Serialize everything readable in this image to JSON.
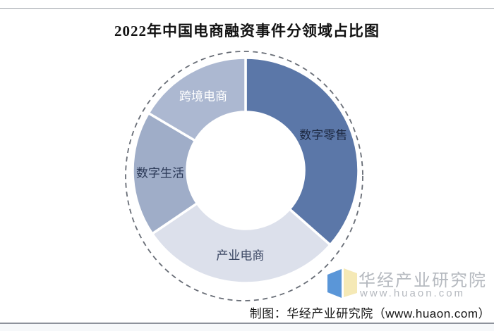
{
  "title": "2022年中国电商融资事件分领域占比图",
  "chart_data": {
    "type": "pie",
    "subtype": "donut",
    "title": "2022年中国电商融资事件分领域占比图",
    "direction": "clockwise",
    "start_angle_deg": 0,
    "legend_position": "none",
    "note": "No numeric labels shown in image; percentages estimated from arc angles",
    "segments": [
      {
        "label": "数字零售",
        "value_pct": 36.5,
        "color": "#5b77a8",
        "label_color": "#1d2942"
      },
      {
        "label": "产业电商",
        "value_pct": 29.0,
        "color": "#dce0eb",
        "label_color": "#3b4763"
      },
      {
        "label": "数字生活",
        "value_pct": 18.0,
        "color": "#9fadc8",
        "label_color": "#2c3a58"
      },
      {
        "label": "跨境电商",
        "value_pct": 16.5,
        "color": "#acb8d1",
        "label_color": "#ffffff"
      }
    ],
    "outline": {
      "style": "dashed-circle",
      "color": "#686d76"
    }
  },
  "watermark": {
    "name": "华经产业研究院",
    "url": "www.huaon.com",
    "color": "#b5b9bf",
    "logo_colors": {
      "left_panel": "#5a96d8",
      "right_panel": "#f5e9b6"
    }
  },
  "credit": "制图：华经产业研究院（www.huaon.com）",
  "frame": {
    "top_line_color": "#999ea6",
    "bottom_line_color": "#8d929b"
  }
}
